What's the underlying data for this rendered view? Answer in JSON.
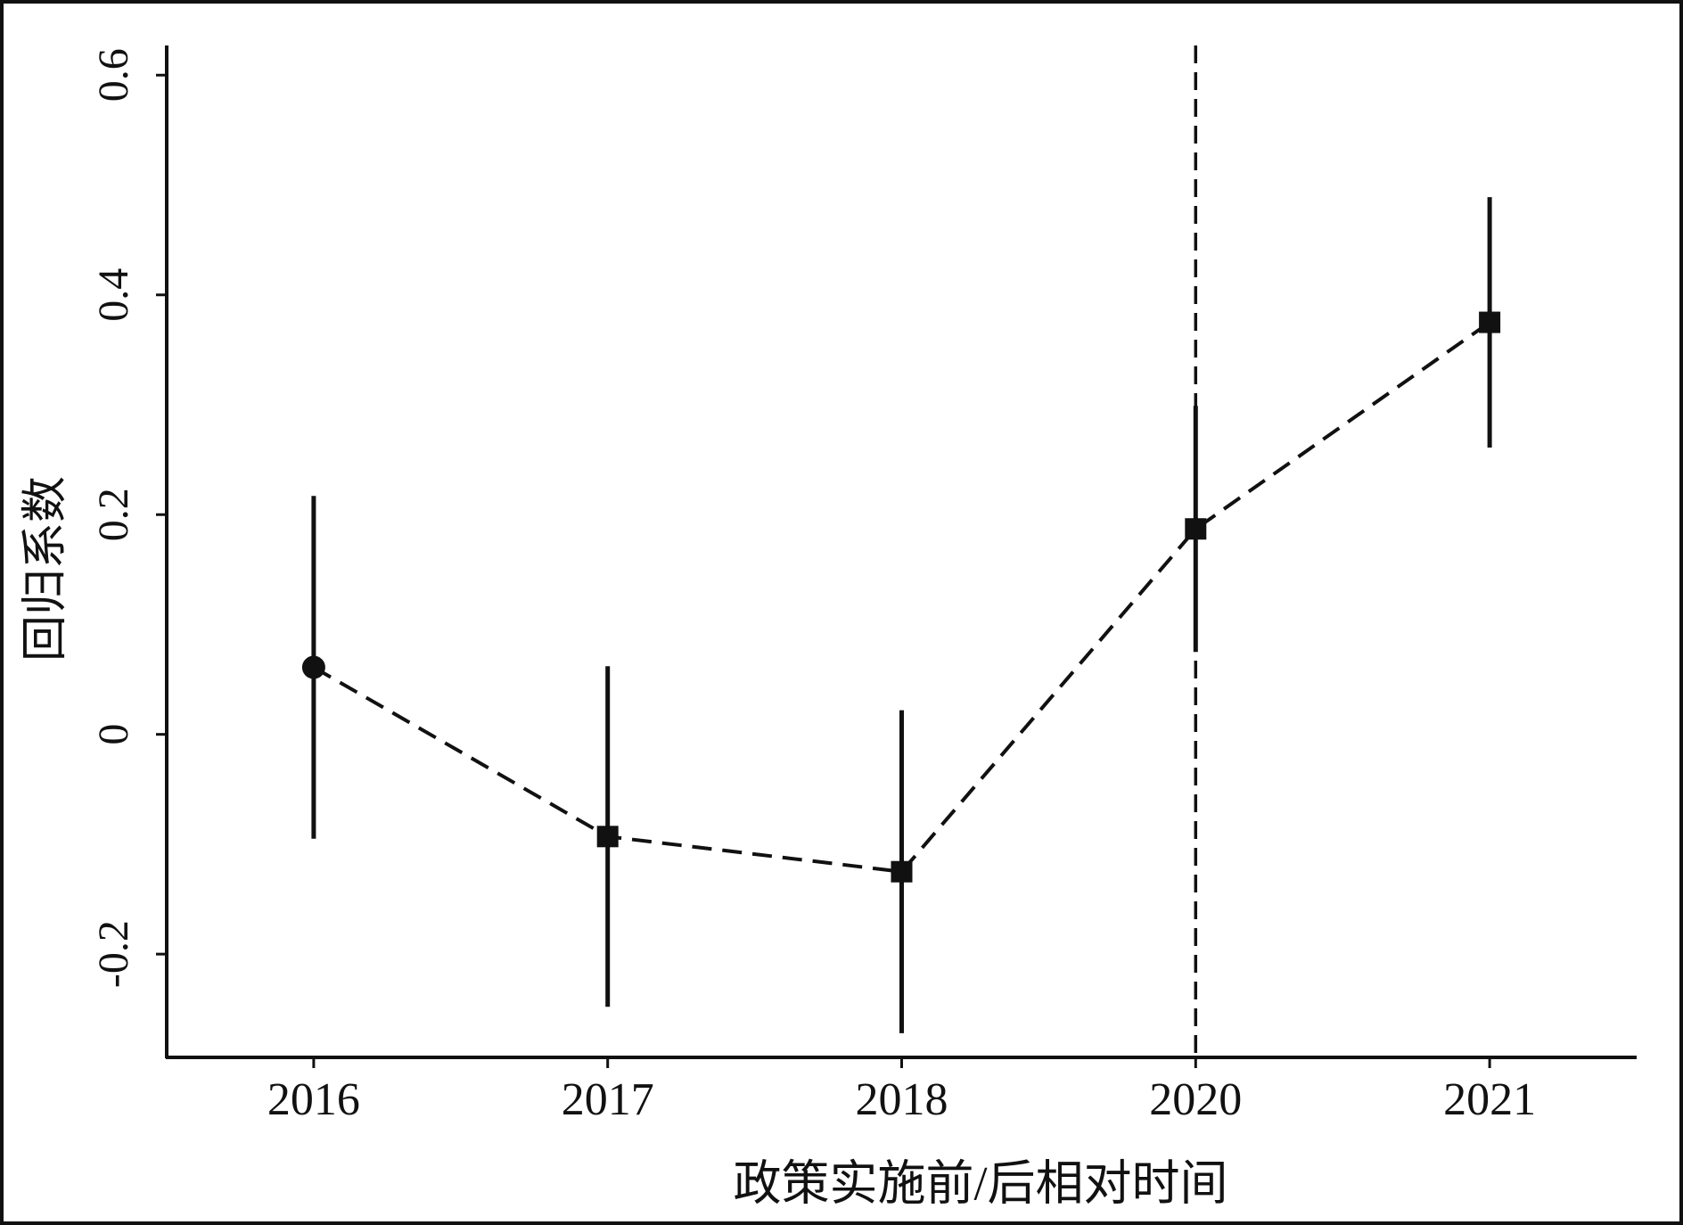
{
  "chart_data": {
    "type": "errorbar",
    "x_label": "政策实施前/后相对时间",
    "y_label": "回归系数",
    "categories": [
      "2016",
      "2017",
      "2018",
      "2020",
      "2021"
    ],
    "values": [
      0.061,
      -0.093,
      -0.125,
      0.187,
      0.375
    ],
    "errors": [
      0.156,
      0.155,
      0.147,
      0.112,
      0.114
    ],
    "markers": [
      "circle",
      "square",
      "square",
      "square",
      "square"
    ],
    "color": "#111111",
    "ylim": [
      -0.294,
      0.627
    ],
    "yticks": [
      -0.2,
      0,
      0.2,
      0.4,
      0.6
    ],
    "vline": "2020",
    "line_style": "dashed"
  }
}
